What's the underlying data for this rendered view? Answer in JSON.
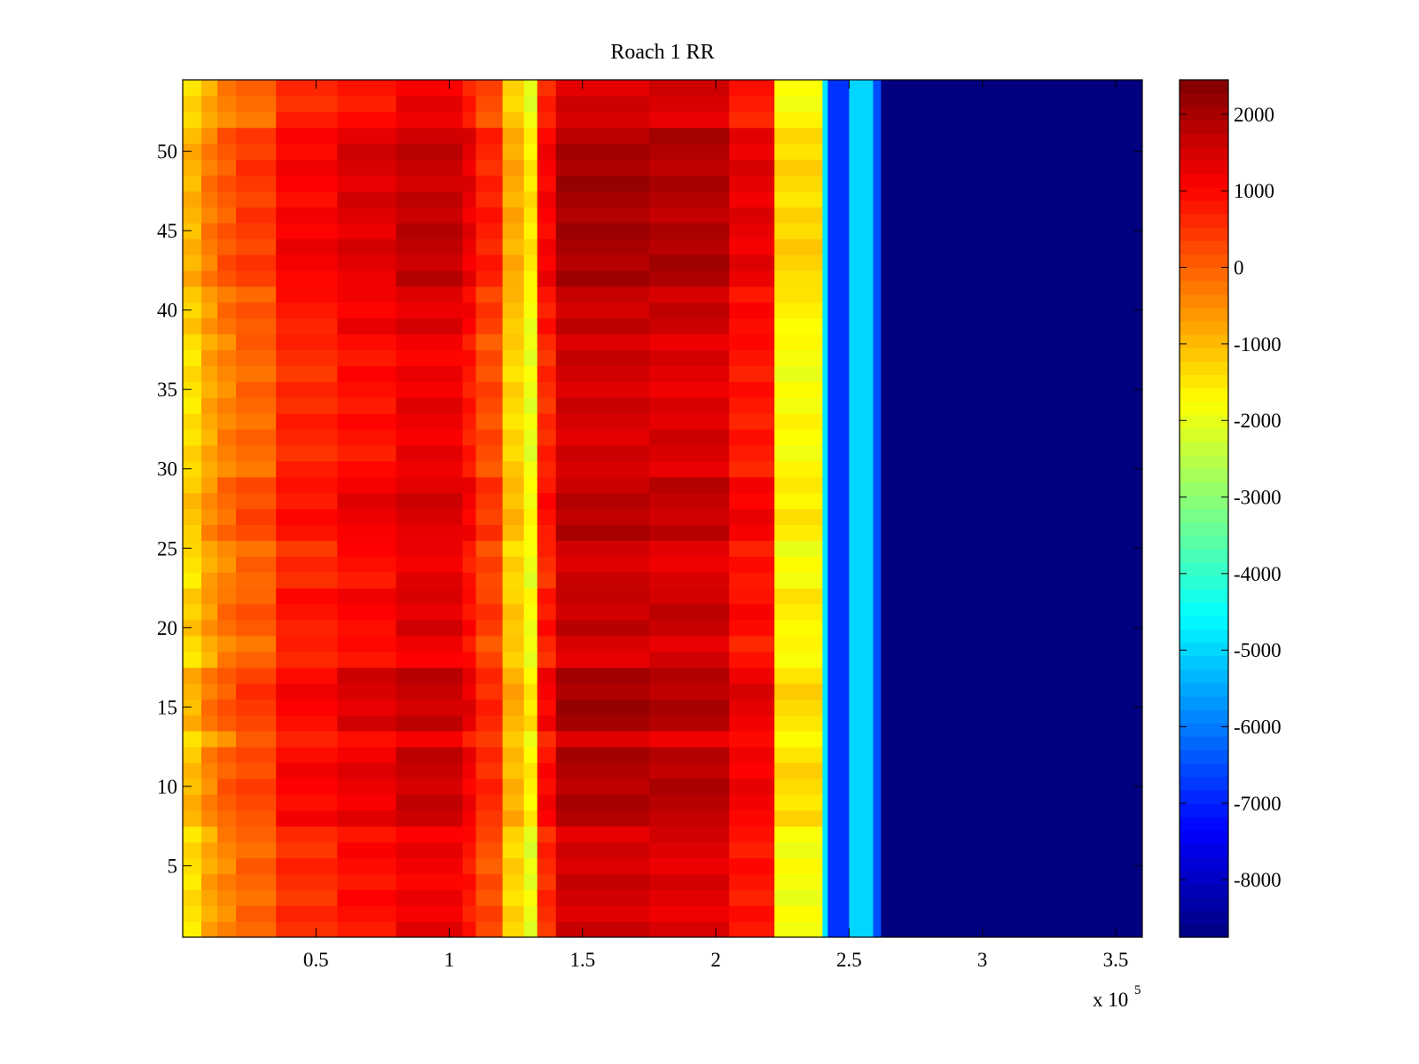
{
  "chart_data": {
    "type": "heatmap",
    "title": "Roach 1 RR",
    "xlabel": "",
    "ylabel": "",
    "x_multiplier": "x 10",
    "x_multiplier_exponent": "5",
    "xlim": [
      0,
      360000
    ],
    "ylim": [
      0.5,
      54.5
    ],
    "x_ticks": [
      {
        "value": 50000,
        "label": "0.5"
      },
      {
        "value": 100000,
        "label": "1"
      },
      {
        "value": 150000,
        "label": "1.5"
      },
      {
        "value": 200000,
        "label": "2"
      },
      {
        "value": 250000,
        "label": "2.5"
      },
      {
        "value": 300000,
        "label": "3"
      },
      {
        "value": 350000,
        "label": "3.5"
      }
    ],
    "y_ticks": [
      {
        "value": 5,
        "label": "5"
      },
      {
        "value": 10,
        "label": "10"
      },
      {
        "value": 15,
        "label": "15"
      },
      {
        "value": 20,
        "label": "20"
      },
      {
        "value": 25,
        "label": "25"
      },
      {
        "value": 30,
        "label": "30"
      },
      {
        "value": 35,
        "label": "35"
      },
      {
        "value": 40,
        "label": "40"
      },
      {
        "value": 45,
        "label": "45"
      },
      {
        "value": 50,
        "label": "50"
      }
    ],
    "colorbar": {
      "colormap": "jet",
      "clim": [
        -8750,
        2450
      ],
      "ticks": [
        {
          "value": 2000,
          "label": "2000"
        },
        {
          "value": 1000,
          "label": "1000"
        },
        {
          "value": 0,
          "label": "0"
        },
        {
          "value": -1000,
          "label": "-1000"
        },
        {
          "value": -2000,
          "label": "-2000"
        },
        {
          "value": -3000,
          "label": "-3000"
        },
        {
          "value": -4000,
          "label": "-4000"
        },
        {
          "value": -5000,
          "label": "-5000"
        },
        {
          "value": -6000,
          "label": "-6000"
        },
        {
          "value": -7000,
          "label": "-7000"
        },
        {
          "value": -8000,
          "label": "-8000"
        }
      ]
    },
    "rows": 54,
    "column_bands": [
      {
        "x_start": 0,
        "x_end": 7000,
        "value": -1400
      },
      {
        "x_start": 7000,
        "x_end": 13000,
        "value": -800
      },
      {
        "x_start": 13000,
        "x_end": 20000,
        "value": -400
      },
      {
        "x_start": 20000,
        "x_end": 35000,
        "value": -100
      },
      {
        "x_start": 35000,
        "x_end": 58000,
        "value": 600
      },
      {
        "x_start": 58000,
        "x_end": 80000,
        "value": 900
      },
      {
        "x_start": 80000,
        "x_end": 105000,
        "value": 1200
      },
      {
        "x_start": 105000,
        "x_end": 110000,
        "value": 800
      },
      {
        "x_start": 110000,
        "x_end": 120000,
        "value": 200
      },
      {
        "x_start": 120000,
        "x_end": 128000,
        "value": -1300
      },
      {
        "x_start": 128000,
        "x_end": 133000,
        "value": -2000
      },
      {
        "x_start": 133000,
        "x_end": 140000,
        "value": 600
      },
      {
        "x_start": 140000,
        "x_end": 175000,
        "value": 1500
      },
      {
        "x_start": 175000,
        "x_end": 205000,
        "value": 1400
      },
      {
        "x_start": 205000,
        "x_end": 222000,
        "value": 800
      },
      {
        "x_start": 222000,
        "x_end": 240000,
        "value": -1800
      },
      {
        "x_start": 240000,
        "x_end": 242000,
        "value": -4800
      },
      {
        "x_start": 242000,
        "x_end": 250000,
        "value": -6800
      },
      {
        "x_start": 250000,
        "x_end": 259000,
        "value": -5000
      },
      {
        "x_start": 259000,
        "x_end": 262000,
        "value": -6500
      },
      {
        "x_start": 262000,
        "x_end": 360000,
        "value": -8750
      }
    ],
    "row_modulation": [
      {
        "y_start": 8,
        "y_end": 12,
        "delta": 400
      },
      {
        "y_start": 13.5,
        "y_end": 17.5,
        "delta": 500
      },
      {
        "y_start": 20,
        "y_end": 22,
        "delta": 200
      },
      {
        "y_start": 26,
        "y_end": 29,
        "delta": 300
      },
      {
        "y_start": 39,
        "y_end": 41,
        "delta": 200
      },
      {
        "y_start": 42,
        "y_end": 51,
        "delta": 500
      }
    ]
  }
}
